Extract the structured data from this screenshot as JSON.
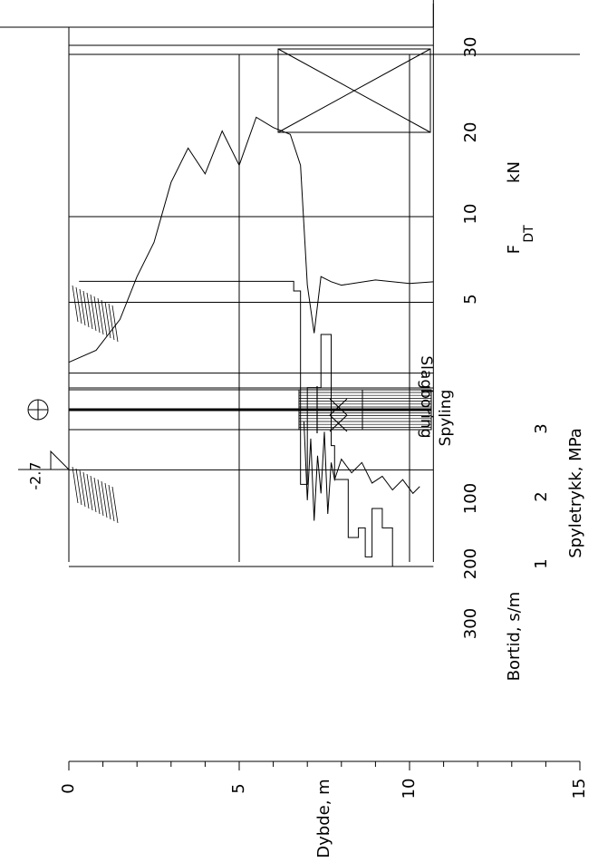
{
  "chart_data": {
    "type": "line",
    "title": "",
    "depth_axis": {
      "label": "Dybde, m",
      "ticks": [
        "0",
        "5",
        "10",
        "15"
      ],
      "range": [
        0,
        15
      ]
    },
    "top_elevation": "-2.7",
    "panels": [
      {
        "id": "bortid",
        "xlabel": "Bortid, s/m",
        "ticks": [
          "300",
          "200",
          "100"
        ],
        "scale_range": [
          300,
          0
        ],
        "secondary_xlabel": "Spyletrykk, MPa",
        "secondary_ticks": [
          "1",
          "2",
          "3"
        ],
        "secondary_range": [
          0,
          3
        ]
      },
      {
        "id": "methods",
        "labels": [
          "Spyling",
          "Slagboring"
        ]
      },
      {
        "id": "force",
        "xlabel": "F",
        "xlabel_sub": "DT",
        "xlabel_unit": "kN",
        "ticks": [
          "5",
          "10",
          "20",
          "30"
        ],
        "range": [
          0,
          30
        ]
      }
    ],
    "series": [
      {
        "name": "Bortid",
        "points": [
          [
            0.3,
            5
          ],
          [
            6.6,
            5
          ],
          [
            6.6,
            15
          ],
          [
            6.8,
            15
          ],
          [
            6.8,
            215
          ],
          [
            7.0,
            215
          ],
          [
            7.0,
            115
          ],
          [
            7.4,
            115
          ],
          [
            7.4,
            60
          ],
          [
            7.7,
            60
          ],
          [
            7.7,
            175
          ],
          [
            7.8,
            175
          ],
          [
            7.8,
            210
          ],
          [
            8.2,
            210
          ],
          [
            8.2,
            270
          ],
          [
            8.5,
            270
          ],
          [
            8.5,
            260
          ],
          [
            8.7,
            260
          ],
          [
            8.7,
            290
          ],
          [
            8.9,
            290
          ],
          [
            8.9,
            240
          ],
          [
            9.2,
            240
          ],
          [
            9.2,
            260
          ],
          [
            9.5,
            260
          ],
          [
            9.5,
            300
          ]
        ]
      },
      {
        "name": "Spyletrykk",
        "points": [
          [
            6.9,
            2.45
          ],
          [
            7.0,
            1.3
          ],
          [
            7.1,
            2.2
          ],
          [
            7.2,
            1.0
          ],
          [
            7.3,
            1.95
          ],
          [
            7.4,
            1.4
          ],
          [
            7.5,
            2.3
          ],
          [
            7.6,
            1.1
          ],
          [
            7.7,
            1.85
          ],
          [
            7.8,
            1.6
          ],
          [
            8.0,
            1.9
          ],
          [
            8.3,
            1.7
          ],
          [
            8.6,
            1.85
          ],
          [
            8.9,
            1.55
          ],
          [
            9.2,
            1.65
          ],
          [
            9.5,
            1.45
          ],
          [
            9.8,
            1.6
          ],
          [
            10.1,
            1.4
          ],
          [
            10.3,
            1.5
          ]
        ]
      },
      {
        "name": "F_DT",
        "points": [
          [
            0.0,
            1.5
          ],
          [
            0.8,
            2.2
          ],
          [
            1.5,
            4.0
          ],
          [
            2.0,
            6.5
          ],
          [
            2.5,
            8.5
          ],
          [
            3.0,
            12.0
          ],
          [
            3.5,
            14.0
          ],
          [
            4.0,
            12.5
          ],
          [
            4.5,
            15.0
          ],
          [
            5.0,
            13.0
          ],
          [
            5.5,
            15.8
          ],
          [
            6.0,
            15.2
          ],
          [
            6.5,
            14.8
          ],
          [
            6.8,
            13.0
          ],
          [
            7.0,
            6.0
          ],
          [
            7.2,
            3.2
          ],
          [
            7.4,
            6.5
          ],
          [
            7.7,
            6.2
          ],
          [
            8.0,
            6.0
          ],
          [
            9.0,
            6.3
          ],
          [
            10.0,
            6.1
          ],
          [
            10.7,
            6.2
          ]
        ]
      }
    ],
    "grid": true
  }
}
